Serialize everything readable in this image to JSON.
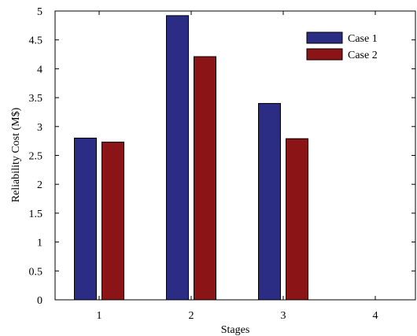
{
  "chart_data": {
    "type": "bar",
    "categories": [
      "1",
      "2",
      "3",
      "4"
    ],
    "series": [
      {
        "name": "Case 1",
        "values": [
          2.8,
          4.92,
          3.4,
          null
        ],
        "color": "#2b2d84"
      },
      {
        "name": "Case 2",
        "values": [
          2.73,
          4.21,
          2.79,
          null
        ],
        "color": "#8b1516"
      }
    ],
    "title": "",
    "xlabel": "Stages",
    "ylabel": "Reliability Cost (M$)",
    "ylim": [
      0,
      5
    ],
    "yticks": [
      "0",
      "0.5",
      "1",
      "1.5",
      "2",
      "2.5",
      "3",
      "3.5",
      "4",
      "4.5",
      "5"
    ],
    "grid": false,
    "legend": "top-right"
  }
}
